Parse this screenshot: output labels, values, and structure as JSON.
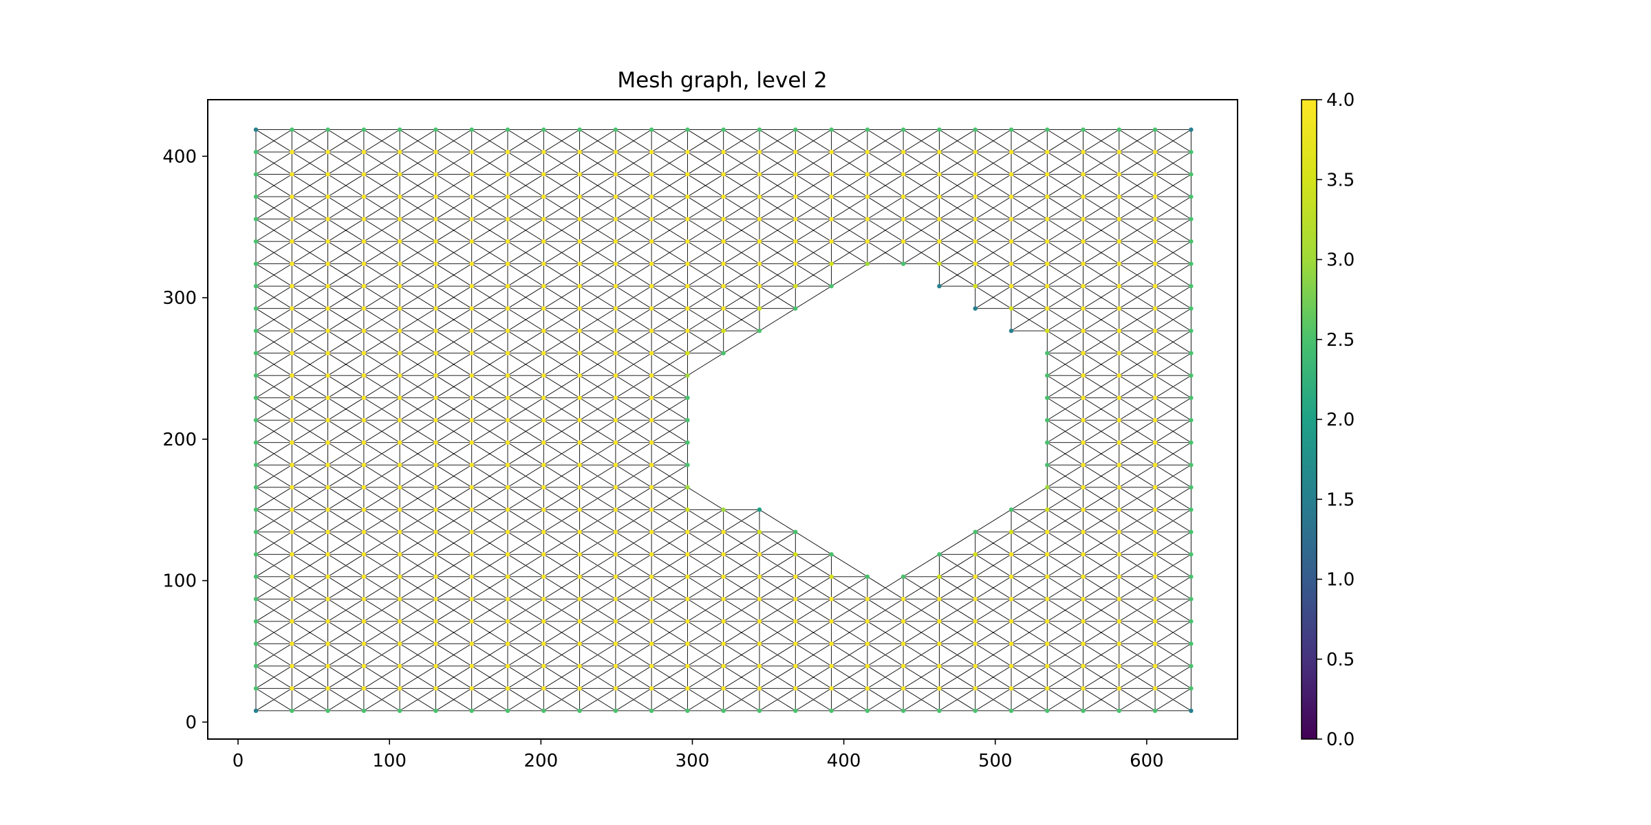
{
  "chart_data": {
    "type": "scatter",
    "subtype": "mesh-graph",
    "title": "Mesh graph, level 2",
    "xlabel": "",
    "ylabel": "",
    "xlim": [
      -20,
      660
    ],
    "ylim": [
      -12,
      440
    ],
    "xticks": [
      0,
      100,
      200,
      300,
      400,
      500,
      600
    ],
    "yticks": [
      0,
      100,
      200,
      300,
      400
    ],
    "grid": false,
    "mesh": {
      "x_start": 11.8,
      "x_step": 23.75,
      "n_cols": 27,
      "y_start": 8,
      "y_step": 15.8,
      "n_rows": 27,
      "edges": "horizontal, vertical and both diagonals of every grid cell",
      "hole": {
        "shape": "hexagon",
        "vertices": [
          [
            320,
            166
          ],
          [
            320,
            246
          ],
          [
            427,
            324
          ],
          [
            534,
            246
          ],
          [
            534,
            166
          ],
          [
            427,
            102
          ]
        ]
      }
    },
    "node_color": "node degree",
    "colormap": "viridis",
    "colorbar": {
      "range": [
        0,
        4
      ],
      "ticks": [
        "0.0",
        "0.5",
        "1.0",
        "1.5",
        "2.0",
        "2.5",
        "3.0",
        "3.5",
        "4.0"
      ]
    }
  }
}
